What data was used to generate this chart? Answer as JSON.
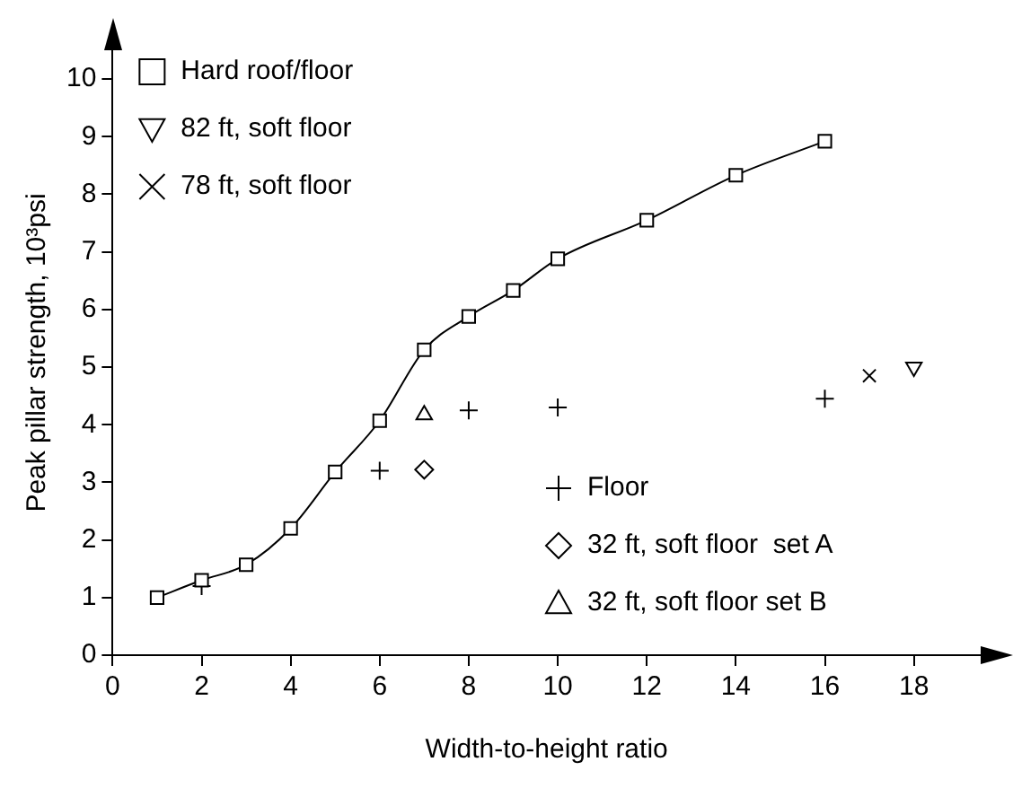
{
  "chart_data": {
    "type": "scatter",
    "xlabel": "Width-to-height ratio",
    "ylabel": "Peak pillar strength, 10³psi",
    "xlim": [
      0,
      19.5
    ],
    "xticks": [
      0,
      2,
      4,
      6,
      8,
      10,
      12,
      14,
      16,
      18
    ],
    "ylim": [
      0,
      10.5
    ],
    "yticks": [
      0,
      1,
      2,
      3,
      4,
      5,
      6,
      7,
      8,
      9,
      10
    ],
    "grid": false,
    "legend": "top left",
    "series": [
      {
        "name": "Hard roof/floor",
        "type": "line",
        "marker": "square",
        "line_style": "solid",
        "color": "#000000",
        "x": [
          1,
          2,
          3,
          4,
          5,
          6,
          7,
          8,
          9,
          10,
          12,
          14,
          16
        ],
        "values": [
          1.0,
          1.3,
          1.57,
          2.2,
          3.18,
          4.07,
          5.3,
          5.88,
          6.33,
          6.88,
          7.55,
          8.33,
          8.92
        ]
      },
      {
        "name": "82 ft, soft floor",
        "type": "scatter",
        "marker": "triangle-down",
        "color": "#000000",
        "x": [
          18
        ],
        "values": [
          5.0
        ]
      },
      {
        "name": "78 ft, soft floor",
        "type": "scatter",
        "marker": "cross",
        "color": "#000000",
        "x": [
          17
        ],
        "values": [
          4.85
        ]
      },
      {
        "name": "Floor",
        "type": "scatter",
        "marker": "plus",
        "color": "#000000",
        "x": [
          2,
          6,
          8,
          10,
          16
        ],
        "values": [
          1.2,
          3.2,
          4.25,
          4.3,
          4.45
        ]
      },
      {
        "name": "32 ft, soft floor  set A",
        "type": "scatter",
        "marker": "diamond",
        "color": "#000000",
        "x": [
          7
        ],
        "values": [
          3.22
        ]
      },
      {
        "name": "32 ft, soft floor set B",
        "type": "scatter",
        "marker": "triangle",
        "color": "#000000",
        "x": [
          7
        ],
        "values": [
          4.17
        ]
      }
    ]
  }
}
